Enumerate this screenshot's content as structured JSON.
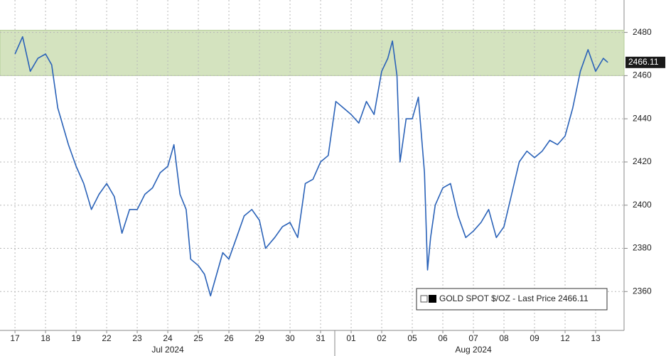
{
  "chart_data": {
    "type": "line",
    "series": [
      {
        "name": "GOLD SPOT $/OZ - Last Price 2466.11",
        "color": "#2a62b8",
        "x": [
          0,
          0.25,
          0.5,
          0.75,
          1,
          1.2,
          1.4,
          1.75,
          2,
          2.25,
          2.5,
          2.75,
          3,
          3.25,
          3.5,
          3.75,
          4,
          4.25,
          4.5,
          4.75,
          5,
          5.2,
          5.4,
          5.6,
          5.75,
          6,
          6.2,
          6.4,
          6.6,
          6.8,
          7,
          7.25,
          7.5,
          7.75,
          8,
          8.2,
          8.5,
          8.75,
          9,
          9.25,
          9.5,
          9.75,
          10,
          10.25,
          10.5,
          10.75,
          11,
          11.25,
          11.5,
          11.75,
          12,
          12.2,
          12.35,
          12.5,
          12.6,
          12.8,
          13,
          13.2,
          13.4,
          13.5,
          13.6,
          13.75,
          14,
          14.25,
          14.5,
          14.75,
          15,
          15.25,
          15.5,
          15.75,
          16,
          16.25,
          16.5,
          16.75,
          17,
          17.25,
          17.5,
          17.75,
          18,
          18.25,
          18.5,
          18.75,
          19,
          19.25,
          19.4
        ],
        "values": [
          2470,
          2478,
          2462,
          2468,
          2470,
          2465,
          2445,
          2428,
          2418,
          2410,
          2398,
          2405,
          2410,
          2404,
          2387,
          2398,
          2398,
          2405,
          2408,
          2415,
          2418,
          2428,
          2405,
          2398,
          2375,
          2372,
          2368,
          2358,
          2368,
          2378,
          2375,
          2385,
          2395,
          2398,
          2393,
          2380,
          2385,
          2390,
          2392,
          2385,
          2410,
          2412,
          2420,
          2423,
          2448,
          2445,
          2442,
          2438,
          2448,
          2442,
          2462,
          2468,
          2476,
          2460,
          2420,
          2440,
          2440,
          2450,
          2415,
          2370,
          2385,
          2400,
          2408,
          2410,
          2395,
          2385,
          2388,
          2392,
          2398,
          2385,
          2390,
          2405,
          2420,
          2425,
          2422,
          2425,
          2430,
          2428,
          2432,
          2445,
          2462,
          2472,
          2462,
          2468,
          2466.11
        ]
      }
    ],
    "highlight_range": [
      2460,
      2481
    ],
    "xlim": [
      -0.49,
      19.93
    ],
    "xticks": [
      {
        "value": 0,
        "label": "17"
      },
      {
        "value": 1,
        "label": "18"
      },
      {
        "value": 2,
        "label": "19"
      },
      {
        "value": 3,
        "label": "22"
      },
      {
        "value": 4,
        "label": "23"
      },
      {
        "value": 5,
        "label": "24"
      },
      {
        "value": 6,
        "label": "25"
      },
      {
        "value": 7,
        "label": "26"
      },
      {
        "value": 8,
        "label": "29"
      },
      {
        "value": 9,
        "label": "30"
      },
      {
        "value": 10,
        "label": "31"
      },
      {
        "value": 11,
        "label": "01"
      },
      {
        "value": 12,
        "label": "02"
      },
      {
        "value": 13,
        "label": "05"
      },
      {
        "value": 14,
        "label": "06"
      },
      {
        "value": 15,
        "label": "07"
      },
      {
        "value": 16,
        "label": "08"
      },
      {
        "value": 17,
        "label": "09"
      },
      {
        "value": 18,
        "label": "12"
      },
      {
        "value": 19,
        "label": "13"
      }
    ],
    "months": [
      "Jul 2024",
      "Aug 2024"
    ],
    "ylim": [
      2342,
      2495
    ],
    "yticks": [
      2360,
      2380,
      2400,
      2420,
      2440,
      2460,
      2480
    ],
    "grid": true
  }
}
